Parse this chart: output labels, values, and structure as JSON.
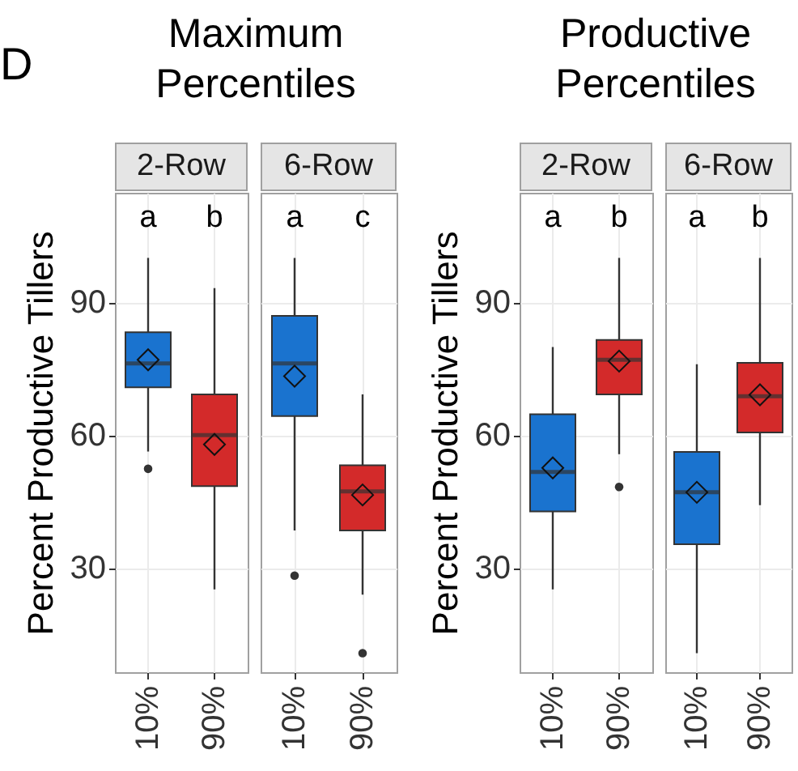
{
  "chart_data": [
    {
      "type": "box",
      "title": "Maximum Percentiles",
      "subtitle": "2-Row",
      "ylabel": "Percent Productive Tillers",
      "categories": [
        "10%",
        "90%"
      ],
      "colors": [
        "#1a73cf",
        "#d32a2a"
      ],
      "boxes": [
        {
          "low": 56.3,
          "q1": 70.8,
          "median": 76.2,
          "q3": 83.2,
          "high": 100,
          "mean": 77,
          "outliers": [
            52.4
          ]
        },
        {
          "low": 25.2,
          "q1": 48.5,
          "median": 60,
          "q3": 69.2,
          "high": 93.2,
          "mean": 57.9
        }
      ],
      "annotations": [
        "D",
        "a",
        "b"
      ],
      "ylim": [
        6.5,
        114.7
      ],
      "yticks": [
        30,
        60,
        90
      ],
      "grid": true
    },
    {
      "type": "box",
      "subtitle": "6-Row",
      "categories": [
        "10%",
        "90%"
      ],
      "colors": [
        "#1a73cf",
        "#d32a2a"
      ],
      "boxes": [
        {
          "low": 38.5,
          "q1": 64.3,
          "median": 76.2,
          "q3": 86.9,
          "high": 100,
          "mean": 73.3,
          "outliers": [
            28.3
          ]
        },
        {
          "low": 24,
          "q1": 38.5,
          "median": 47.3,
          "q3": 53.2,
          "high": 69.2,
          "mean": 46.5,
          "outliers": [
            10.8
          ]
        }
      ],
      "annotations": [
        "a",
        "c"
      ],
      "ylim": [
        6.5,
        114.7
      ],
      "yticks": [
        30,
        60,
        90
      ],
      "grid": true,
      "tick_labels": "x"
    },
    {
      "type": "box",
      "title": "Productive Percentiles",
      "subtitle": "2-Row",
      "ylabel": "Percent Productive Tillers",
      "categories": [
        "10%",
        "90%"
      ],
      "colors": [
        "#1a73cf",
        "#d32a2a"
      ],
      "boxes": [
        {
          "low": 25.2,
          "q1": 42.8,
          "median": 51.7,
          "q3": 64.7,
          "high": 79.9,
          "mean": 52.6
        },
        {
          "low": 55.7,
          "q1": 69.2,
          "median": 77,
          "q3": 81.5,
          "high": 100,
          "mean": 76.7,
          "outliers": [
            48.3
          ]
        }
      ],
      "annotations": [
        "a",
        "b"
      ],
      "ylim": [
        6.5,
        114.7
      ],
      "yticks": [
        30,
        60,
        90
      ],
      "grid": true
    },
    {
      "type": "box",
      "subtitle": "6-Row",
      "categories": [
        "10%",
        "90%"
      ],
      "colors": [
        "#1a73cf",
        "#d32a2a"
      ],
      "boxes": [
        {
          "low": 10.8,
          "q1": 35.4,
          "median": 47.1,
          "q3": 56.2,
          "high": 76,
          "mean": 47.1
        },
        {
          "low": 44.2,
          "q1": 60.6,
          "median": 68.8,
          "q3": 76.3,
          "high": 100,
          "mean": 69.1
        }
      ],
      "annotations": [
        "a",
        "b"
      ],
      "ylim": [
        6.5,
        114.7
      ],
      "yticks": [
        30,
        60,
        90
      ],
      "grid": true,
      "tick_labels": "x"
    }
  ]
}
